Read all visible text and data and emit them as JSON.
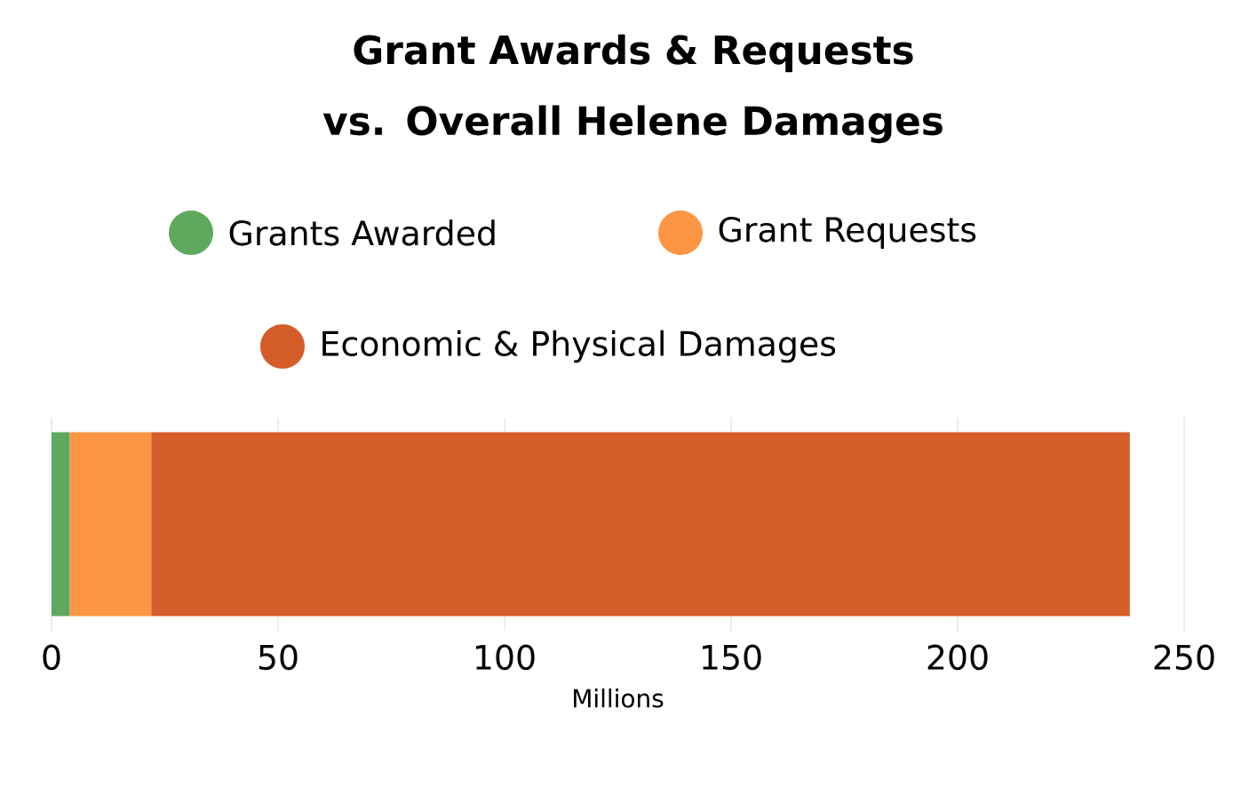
{
  "chart_data": {
    "type": "bar",
    "orientation": "horizontal",
    "stacked": true,
    "title": "Grant Awards & Requests vs. Overall Helene Damages",
    "xlabel": "Millions",
    "categories": [
      null
    ],
    "series": [
      {
        "name": "Grants Awarded",
        "color": "#5fa95f",
        "values": [
          4
        ]
      },
      {
        "name": "Grant Requests",
        "color": "#fd9644",
        "values": [
          18
        ]
      },
      {
        "name": "Economic & Physical Damages",
        "color": "#d45d2a",
        "values": [
          216
        ]
      }
    ],
    "xlim": [
      0,
      250
    ],
    "xticks": [
      0,
      50,
      100,
      150,
      200,
      250
    ],
    "grid": "x",
    "legend": "top"
  }
}
